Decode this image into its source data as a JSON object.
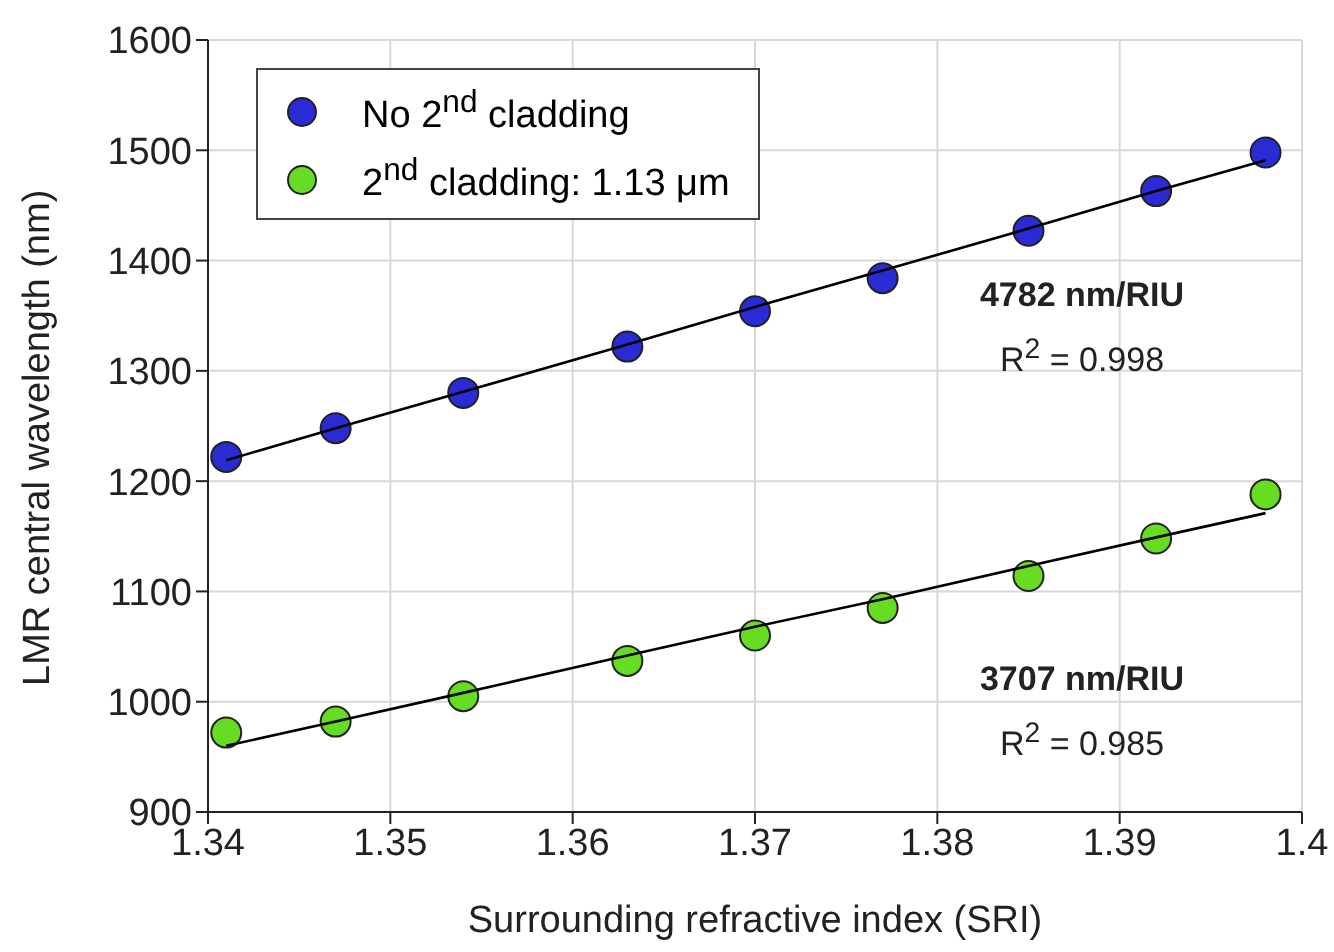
{
  "chart_data": {
    "type": "scatter",
    "xlabel": "Surrounding refractive index (SRI)",
    "ylabel": "LMR central wavelength (nm)",
    "xlim": [
      1.34,
      1.4
    ],
    "xticks": [
      1.34,
      1.35,
      1.36,
      1.37,
      1.38,
      1.39,
      1.4
    ],
    "ylim": [
      900,
      1600
    ],
    "yticks": [
      900,
      1000,
      1100,
      1200,
      1300,
      1400,
      1500,
      1600
    ],
    "grid": true,
    "legend": "top left",
    "marker": "circle",
    "x": [
      1.341,
      1.347,
      1.354,
      1.363,
      1.37,
      1.377,
      1.385,
      1.392,
      1.398
    ],
    "series": [
      {
        "name": "No 2$^{nd}$ cladding",
        "color": "#2b2bd6",
        "values": [
          1222,
          1248,
          1280,
          1322,
          1354,
          1384,
          1427,
          1463,
          1498
        ]
      },
      {
        "name": "2$^{nd}$ cladding: 1.13 μm",
        "color": "#66dd22",
        "values": [
          972,
          982,
          1005,
          1037,
          1060,
          1085,
          1114,
          1148,
          1188
        ]
      },
      {
        "type": "line",
        "color": "#000000",
        "marker": "none",
        "values": [
          1219,
          1248,
          1281,
          1324,
          1358,
          1391,
          1429,
          1463,
          1491
        ]
      },
      {
        "type": "line",
        "color": "#000000",
        "marker": "none",
        "values": [
          960,
          982,
          1008,
          1042,
          1068,
          1093,
          1123,
          1149,
          1171
        ]
      }
    ],
    "annotations": [
      "4782 nm/RIU",
      "R$^{2}$ = 0.998",
      "3707 nm/RIU",
      "R$^{2}$ = 0.985"
    ]
  }
}
